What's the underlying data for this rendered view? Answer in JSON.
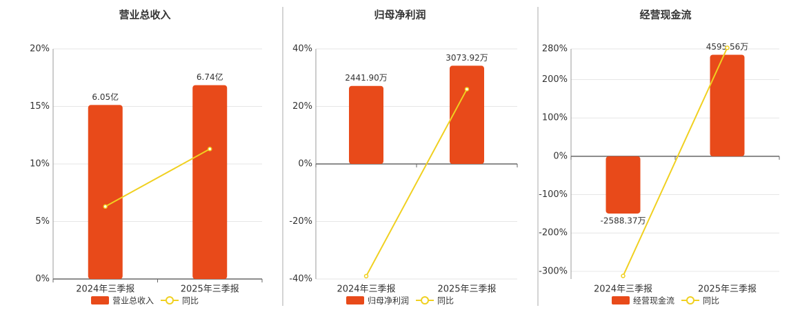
{
  "chart_data": [
    {
      "type": "bar",
      "title": "营业总收入",
      "categories": [
        "2024年三季报",
        "2025年三季报"
      ],
      "series": [
        {
          "name": "营业总收入",
          "color": "#e84a1a",
          "axis": "y2",
          "values": [
            6.05,
            6.74
          ],
          "value_labels": [
            "6.05亿",
            "6.74亿"
          ]
        },
        {
          "name": "同比",
          "type": "line",
          "color": "#f0d020",
          "values": [
            6.3,
            11.3
          ]
        }
      ],
      "ylim": [
        0,
        20
      ],
      "yticks": [
        {
          "value": 0,
          "label": "0%"
        },
        {
          "value": 5,
          "label": "5%"
        },
        {
          "value": 10,
          "label": "10%"
        },
        {
          "value": 15,
          "label": "15%"
        },
        {
          "value": 20,
          "label": "20%"
        }
      ],
      "y2lim": [
        0,
        8
      ],
      "grid": true
    },
    {
      "type": "bar",
      "title": "归母净利润",
      "categories": [
        "2024年三季报",
        "2025年三季报"
      ],
      "series": [
        {
          "name": "归母净利润",
          "color": "#e84a1a",
          "axis": "y2",
          "values": [
            2441.9,
            3073.92
          ],
          "value_labels": [
            "2441.90万",
            "3073.92万"
          ]
        },
        {
          "name": "同比",
          "type": "line",
          "color": "#f0d020",
          "values": [
            -39,
            26
          ]
        }
      ],
      "ylim": [
        -40,
        40
      ],
      "yticks": [
        {
          "value": -40,
          "label": "-40%"
        },
        {
          "value": -20,
          "label": "-20%"
        },
        {
          "value": 0,
          "label": "0%"
        },
        {
          "value": 20,
          "label": "20%"
        },
        {
          "value": 40,
          "label": "40%"
        }
      ],
      "y2lim": [
        -3600,
        3600
      ],
      "grid": true
    },
    {
      "type": "bar",
      "title": "经营现金流",
      "categories": [
        "2024年三季报",
        "2025年三季报"
      ],
      "series": [
        {
          "name": "经营现金流",
          "color": "#e84a1a",
          "axis": "y2",
          "values": [
            -2588.37,
            4595.56
          ],
          "value_labels": [
            "-2588.37万",
            "4595.56万"
          ]
        },
        {
          "name": "同比",
          "type": "line",
          "color": "#f0d020",
          "values": [
            -312,
            283
          ]
        }
      ],
      "ylim": [
        -320,
        280
      ],
      "yticks": [
        {
          "value": -300,
          "label": "-300%"
        },
        {
          "value": -200,
          "label": "-200%"
        },
        {
          "value": -100,
          "label": "-100%"
        },
        {
          "value": 0,
          "label": "0%"
        },
        {
          "value": 100,
          "label": "100%"
        },
        {
          "value": 200,
          "label": "200%"
        },
        {
          "value": 280,
          "label": "280%"
        }
      ],
      "y2lim": [
        -5550,
        4860
      ],
      "grid": true
    }
  ]
}
